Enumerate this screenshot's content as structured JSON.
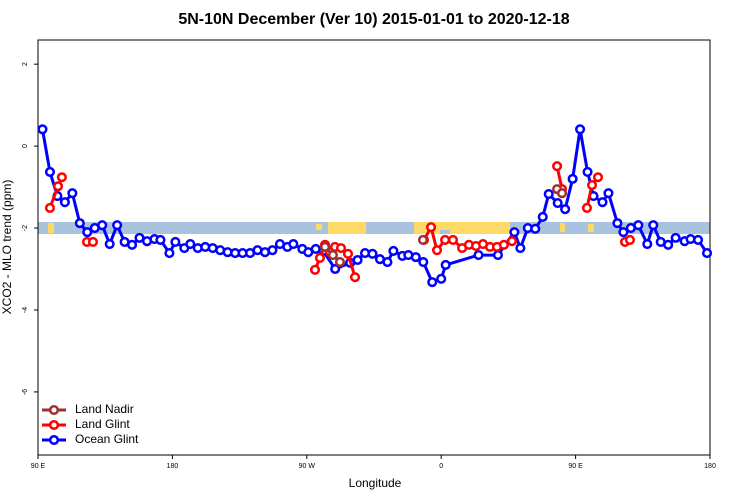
{
  "chart_data": {
    "type": "line",
    "title": "5N-10N December (Ver 10)   2015-01-01 to 2020-12-18",
    "xlabel": "Longitude",
    "ylabel": "XCO2 - MLO trend (ppm)",
    "xlim": [
      90,
      540
    ],
    "ylim": [
      -7.54,
      2.59
    ],
    "xticks": [
      {
        "value": 90,
        "label": "90 E"
      },
      180,
      {
        "value": 270,
        "label": "90 W"
      },
      {
        "value": 360,
        "label": "0"
      },
      {
        "value": 450,
        "label": "90 E"
      },
      {
        "value": 540,
        "label": "180"
      }
    ],
    "yticks": [
      2,
      0,
      -2,
      -4,
      -6
    ],
    "legend": "bottom-left",
    "series": [
      {
        "name": "Land Nadir",
        "color": "#a0302f",
        "x": [
          282.2,
          287.5,
          292.2,
          null,
          347.8,
          null,
          437.6,
          440.9
        ],
        "values": [
          -2.46,
          -2.66,
          -2.83,
          null,
          -2.29,
          null,
          -1.05,
          -1.15
        ]
      },
      {
        "name": "Land Glint",
        "color": "#ff0000",
        "x": [
          98,
          103.4,
          106,
          null,
          122.8,
          126.8,
          null,
          275.5,
          278.8,
          282.2,
          285.5,
          288.9,
          292.9,
          297.6,
          302.3,
          null,
          348.5,
          353.2,
          357.2,
          362.6,
          367.9,
          374,
          378.6,
          383.3,
          388,
          392.7,
          397.4,
          402,
          407.4,
          null,
          437.6,
          440.9,
          null,
          457.6,
          461,
          465,
          null,
          483.1,
          486.4
        ],
        "values": [
          -1.51,
          -0.98,
          -0.76,
          null,
          -2.34,
          -2.34,
          null,
          -3.02,
          -2.73,
          -2.41,
          -2.59,
          -2.46,
          -2.49,
          -2.63,
          -3.2,
          null,
          -2.29,
          -1.98,
          -2.54,
          -2.29,
          -2.29,
          -2.49,
          -2.41,
          -2.44,
          -2.39,
          -2.46,
          -2.46,
          -2.41,
          -2.32,
          null,
          -0.49,
          -1.05,
          null,
          -1.51,
          -0.95,
          -0.76,
          null,
          -2.34,
          -2.29
        ]
      },
      {
        "name": "Ocean Glint",
        "color": "#0000ff",
        "x": [
          93,
          98,
          103,
          108,
          113,
          118,
          123,
          128,
          133,
          138,
          143,
          148,
          153,
          158,
          163,
          168,
          172,
          178,
          182,
          188,
          192,
          197,
          202,
          207,
          212,
          217,
          222,
          227,
          232,
          237,
          242,
          247,
          252,
          257,
          261,
          267,
          271,
          276,
          281,
          289,
          299,
          304,
          309,
          314,
          319,
          324,
          328,
          334,
          338,
          343,
          348,
          354,
          360,
          363,
          385,
          398,
          409,
          413,
          418,
          423,
          428,
          432,
          438,
          443,
          448,
          453,
          458,
          462,
          468,
          472,
          478,
          482,
          487,
          492,
          498,
          502,
          507,
          512,
          517,
          523,
          527,
          532,
          538
        ],
        "values": [
          0.41,
          -0.63,
          -1.22,
          -1.37,
          -1.15,
          -1.88,
          -2.1,
          -2.0,
          -1.93,
          -2.39,
          -1.93,
          -2.34,
          -2.41,
          -2.24,
          -2.32,
          -2.27,
          -2.29,
          -2.61,
          -2.34,
          -2.49,
          -2.39,
          -2.49,
          -2.46,
          -2.49,
          -2.54,
          -2.59,
          -2.61,
          -2.61,
          -2.61,
          -2.54,
          -2.59,
          -2.54,
          -2.39,
          -2.46,
          -2.39,
          -2.51,
          -2.59,
          -2.51,
          -2.56,
          -3.0,
          -2.85,
          -2.78,
          -2.61,
          -2.63,
          -2.76,
          -2.83,
          -2.56,
          -2.68,
          -2.66,
          -2.71,
          -2.83,
          -3.32,
          -3.24,
          -2.9,
          -2.66,
          -2.66,
          -2.1,
          -2.49,
          -2.0,
          -2.02,
          -1.73,
          -1.17,
          -1.39,
          -1.54,
          -0.8,
          0.41,
          -0.63,
          -1.22,
          -1.37,
          -1.15,
          -1.88,
          -2.1,
          -2.0,
          -1.93,
          -2.39,
          -1.93,
          -2.34,
          -2.41,
          -2.24,
          -2.32,
          -2.27,
          -2.29,
          -2.61
        ]
      }
    ]
  }
}
